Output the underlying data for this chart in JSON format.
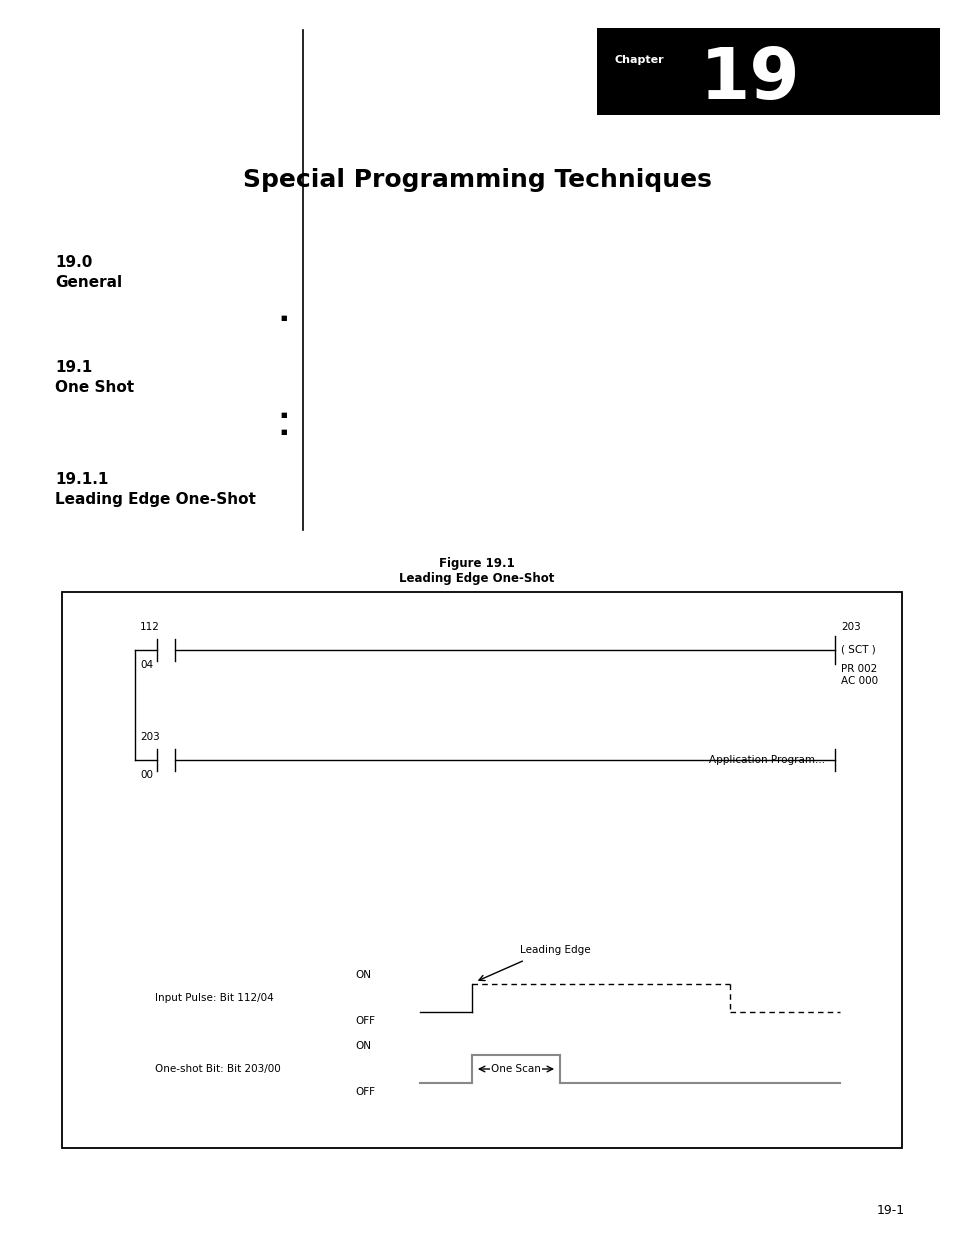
{
  "page_bg": "#ffffff",
  "chapter_label": "Chapter",
  "chapter_number": "19",
  "title": "Special Programming Techniques",
  "section_00_label": "19.0",
  "section_00_title": "General",
  "section_01_label": "19.1",
  "section_01_title": "One Shot",
  "section_011_label": "19.1.1",
  "section_011_title": "Leading Edge One-Shot",
  "figure_caption_line1": "Figure 19.1",
  "figure_caption_line2": "Leading Edge One-Shot",
  "page_number": "19-1",
  "ladder_rung1_top": "112",
  "ladder_rung1_bottom": "04",
  "ladder_rung1_right_top": "203",
  "ladder_rung1_right_mid": "( SCT )",
  "ladder_rung1_right_sub1": "PR 002",
  "ladder_rung1_right_sub2": "AC 000",
  "ladder_rung2_top": "203",
  "ladder_rung2_bottom": "00",
  "ladder_rung2_right": "Application Program...",
  "timing_input_label": "Input Pulse: Bit 112/04",
  "timing_oneshot_label": "One-shot Bit: Bit 203/00",
  "timing_leading_edge_label": "Leading Edge",
  "timing_one_scan_label": "One Scan",
  "waveform_color_input": "#000000",
  "waveform_color_oneshot": "#888888"
}
